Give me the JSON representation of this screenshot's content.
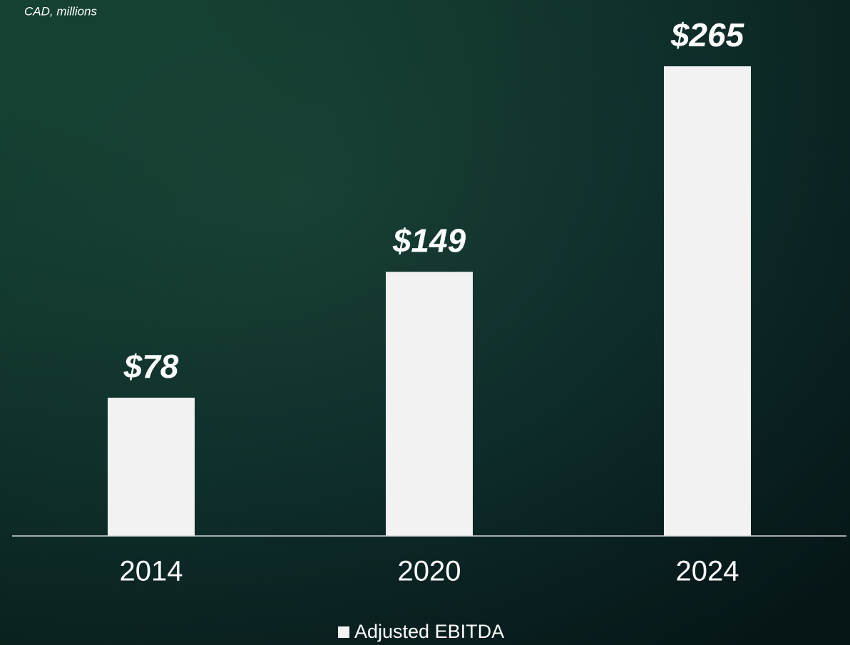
{
  "chart_data": {
    "type": "bar",
    "subtitle": "CAD, millions",
    "categories": [
      "2014",
      "2020",
      "2024"
    ],
    "series": [
      {
        "name": "Adjusted EBITDA",
        "color": "#f2f2f2",
        "values": [
          78,
          149,
          265
        ],
        "value_labels": [
          "$78",
          "$149",
          "$265"
        ]
      }
    ],
    "ylim": [
      0,
      300
    ],
    "legend": "bottom"
  }
}
